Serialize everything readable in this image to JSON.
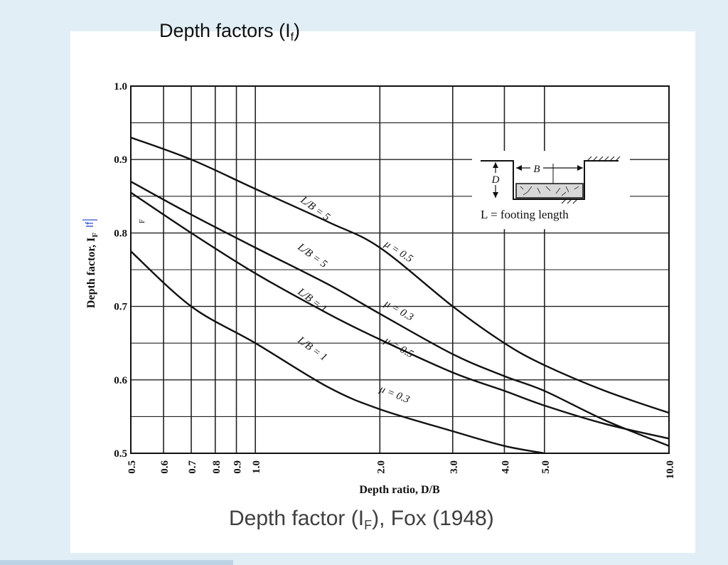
{
  "slide": {
    "title_main": "Depth factors (I",
    "title_sub": "f",
    "title_close": ")",
    "caption_main": "Depth factor (I",
    "caption_sub": "F",
    "caption_rest": "),  Fox (1948)"
  },
  "chart_data": {
    "type": "line",
    "xlabel": "Depth ratio, D/B",
    "ylabel": "Depth factor,",
    "ylabel_symbol": "I",
    "ylabel_symbol_sub": "F",
    "ylabel_annotation": "If",
    "x_scale": "log",
    "xlim": [
      0.5,
      10.0
    ],
    "ylim": [
      0.5,
      1.0
    ],
    "x_ticks": [
      "0.5",
      "0.6",
      "0.7",
      "0.8",
      "0.9",
      "1.0",
      "2.0",
      "3.0",
      "4.0",
      "5.0",
      "10.0"
    ],
    "y_ticks": [
      "0.5",
      "0.6",
      "0.7",
      "0.8",
      "0.9",
      "1.0"
    ],
    "grid": true,
    "series": [
      {
        "label_lb": "L/B = 5",
        "label_mu": "μ = 0.5",
        "x": [
          0.5,
          0.7,
          1.0,
          1.5,
          2.0,
          3.0,
          4.0,
          5.0,
          7.0,
          10.0
        ],
        "y": [
          0.93,
          0.9,
          0.86,
          0.815,
          0.78,
          0.7,
          0.65,
          0.62,
          0.585,
          0.555
        ]
      },
      {
        "label_lb": "L/B = 5",
        "label_mu": "μ = 0.3",
        "x": [
          0.5,
          0.7,
          1.0,
          1.5,
          2.0,
          3.0,
          4.0,
          5.0,
          7.0,
          10.0
        ],
        "y": [
          0.87,
          0.825,
          0.78,
          0.73,
          0.69,
          0.635,
          0.605,
          0.585,
          0.545,
          0.51
        ]
      },
      {
        "label_lb": "L/B = 1",
        "label_mu": "μ = 0.5",
        "x": [
          0.5,
          0.7,
          1.0,
          1.5,
          2.0,
          3.0,
          4.0,
          5.0,
          7.0,
          10.0
        ],
        "y": [
          0.855,
          0.8,
          0.745,
          0.69,
          0.655,
          0.61,
          0.585,
          0.565,
          0.54,
          0.52
        ]
      },
      {
        "label_lb": "L/B = 1",
        "label_mu": "μ = 0.3",
        "x": [
          0.5,
          0.7,
          1.0,
          1.5,
          2.0,
          3.0,
          4.0,
          5.0
        ],
        "y": [
          0.775,
          0.7,
          0.65,
          0.59,
          0.56,
          0.53,
          0.51,
          0.5
        ]
      }
    ],
    "inset": {
      "label_b": "B",
      "label_d": "D",
      "legend_text": "L = footing length"
    }
  }
}
